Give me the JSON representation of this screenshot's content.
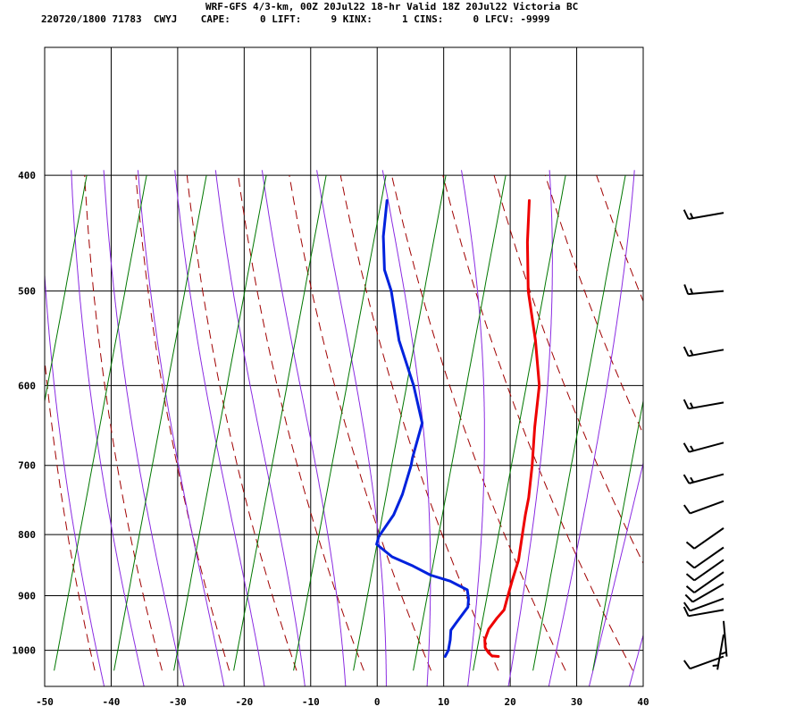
{
  "header": {
    "title": "WRF-GFS 4/3-km, 00Z 20Jul22 18-hr Valid 18Z 20Jul22 Victoria BC",
    "stats_line": "220720/1800 71783  CWYJ    CAPE:     0 LIFT:     9 KINX:     1 CINS:     0 LFCV: -9999"
  },
  "colors": {
    "temperature": "#ee0000",
    "dewpoint": "#0022dd",
    "dry_adiabat": "#a00000",
    "moist_adiabat": "#8a2be2",
    "mixing_ratio": "#007700",
    "grid": "#000000",
    "wind_barb": "#000000"
  },
  "chart_data": {
    "type": "line",
    "title": "",
    "xlabel": "",
    "ylabel": "",
    "y_scale": "log-pressure",
    "x_ticks": [
      -50,
      -40,
      -30,
      -20,
      -10,
      0,
      10,
      20,
      30,
      40
    ],
    "y_ticks": [
      400,
      500,
      600,
      700,
      800,
      900,
      1000
    ],
    "xlim": [
      -50,
      40
    ],
    "ylim": [
      1040,
      400
    ],
    "grid": true,
    "series": [
      {
        "key": "temperature",
        "points": [
          [
            1012,
            18.8
          ],
          [
            1011,
            17.8
          ],
          [
            1005,
            17.0
          ],
          [
            995,
            16.0
          ],
          [
            980,
            15.2
          ],
          [
            960,
            14.8
          ],
          [
            940,
            15.0
          ],
          [
            925,
            15.3
          ],
          [
            905,
            14.7
          ],
          [
            875,
            13.8
          ],
          [
            840,
            12.8
          ],
          [
            800,
            11.0
          ],
          [
            770,
            9.6
          ],
          [
            745,
            8.5
          ],
          [
            700,
            6.0
          ],
          [
            650,
            2.8
          ],
          [
            600,
            -0.4
          ],
          [
            550,
            -5.2
          ],
          [
            500,
            -10.9
          ],
          [
            455,
            -15.6
          ],
          [
            420,
            -19.2
          ]
        ]
      },
      {
        "key": "dewpoint",
        "points": [
          [
            1012,
            10.8
          ],
          [
            1000,
            10.7
          ],
          [
            980,
            10.0
          ],
          [
            962,
            9.2
          ],
          [
            950,
            9.3
          ],
          [
            920,
            9.6
          ],
          [
            905,
            8.9
          ],
          [
            890,
            7.9
          ],
          [
            875,
            4.5
          ],
          [
            865,
            1.0
          ],
          [
            850,
            -2.5
          ],
          [
            835,
            -6.5
          ],
          [
            815,
            -10.0
          ],
          [
            803,
            -10.4
          ],
          [
            770,
            -10.2
          ],
          [
            740,
            -10.8
          ],
          [
            700,
            -12.2
          ],
          [
            690,
            -12.7
          ],
          [
            645,
            -14.5
          ],
          [
            600,
            -19.3
          ],
          [
            550,
            -25.7
          ],
          [
            500,
            -31.5
          ],
          [
            480,
            -34.5
          ],
          [
            450,
            -37.8
          ],
          [
            420,
            -40.6
          ]
        ]
      }
    ],
    "dry_adiabats_theta_K": [
      230,
      240,
      250,
      260,
      270,
      280,
      290,
      300,
      310,
      320,
      330,
      340,
      350,
      360,
      370,
      380,
      390,
      400,
      410,
      420,
      430,
      440
    ],
    "moist_adiabats_surface_C": [
      -36,
      -30,
      -24,
      -18,
      -12,
      -6,
      0,
      6,
      12,
      18,
      24,
      30,
      36,
      42
    ],
    "mixing_ratio_lines_T1000_C": [
      -66,
      -57,
      -48,
      -39,
      -30,
      -21,
      -12,
      -3,
      6,
      15,
      24,
      33
    ],
    "wind_barbs": [
      {
        "p": 1012,
        "speed_kt": 10,
        "dir_deg": 250
      },
      {
        "p": 970,
        "speed_kt": 5,
        "dir_deg": 190
      },
      {
        "p": 945,
        "speed_kt": 5,
        "dir_deg": 175
      },
      {
        "p": 925,
        "speed_kt": 10,
        "dir_deg": 260
      },
      {
        "p": 905,
        "speed_kt": 10,
        "dir_deg": 250
      },
      {
        "p": 880,
        "speed_kt": 10,
        "dir_deg": 240
      },
      {
        "p": 860,
        "speed_kt": 10,
        "dir_deg": 235
      },
      {
        "p": 840,
        "speed_kt": 10,
        "dir_deg": 235
      },
      {
        "p": 820,
        "speed_kt": 10,
        "dir_deg": 235
      },
      {
        "p": 790,
        "speed_kt": 10,
        "dir_deg": 235
      },
      {
        "p": 750,
        "speed_kt": 10,
        "dir_deg": 250
      },
      {
        "p": 712,
        "speed_kt": 15,
        "dir_deg": 255
      },
      {
        "p": 670,
        "speed_kt": 15,
        "dir_deg": 255
      },
      {
        "p": 620,
        "speed_kt": 15,
        "dir_deg": 260
      },
      {
        "p": 560,
        "speed_kt": 15,
        "dir_deg": 260
      },
      {
        "p": 500,
        "speed_kt": 15,
        "dir_deg": 265
      },
      {
        "p": 430,
        "speed_kt": 15,
        "dir_deg": 260
      }
    ]
  }
}
